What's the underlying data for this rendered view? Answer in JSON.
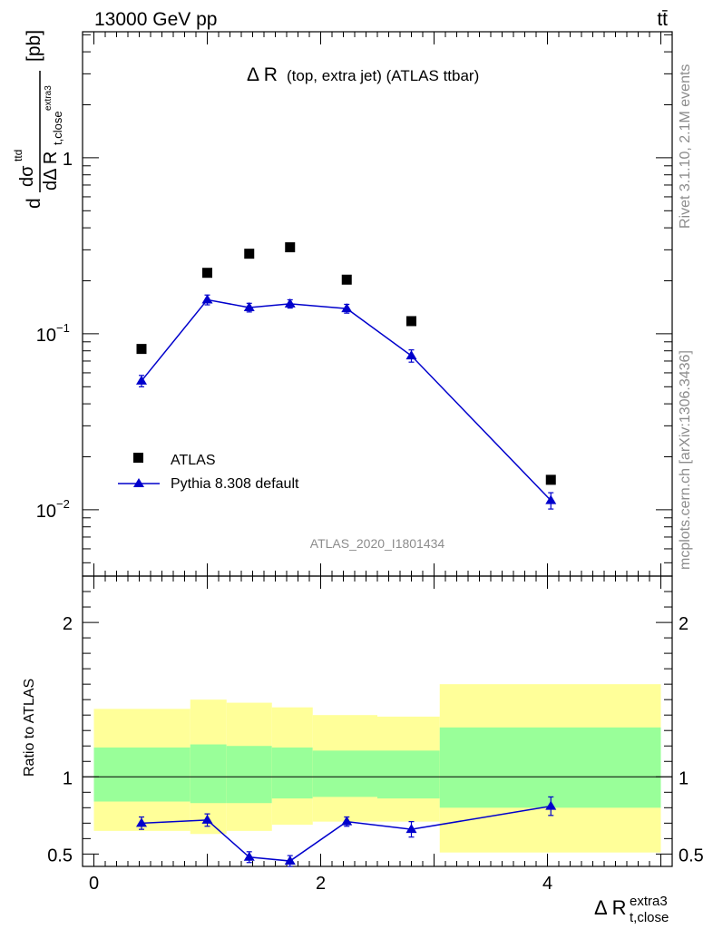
{
  "header": {
    "energy_label": "13000 GeV pp",
    "process_label": "tt̄"
  },
  "plot": {
    "title_main": "Δ R",
    "title_sub": "(top, extra jet) (ATLAS ttbar)",
    "watermark": "ATLAS_2020_I1801434",
    "side_text_top": "Rivet 3.1.10,  2.1M events",
    "side_text_bottom": "mcplots.cern.ch [arXiv:1306.3436]",
    "ylabel_top": "[pb]",
    "ylabel_ratio": "Ratio to ATLAS",
    "xlabel_main": "Δ R",
    "xlabel_sup": "extra3",
    "xlabel_sub": "t,close"
  },
  "chart_data": [
    {
      "type": "scatter",
      "panel": "main",
      "yscale": "log",
      "xlim": [
        -0.1,
        5.1
      ],
      "ylim": [
        0.0042,
        5.2
      ],
      "yticks": [
        {
          "value": 1,
          "label": "1"
        },
        {
          "value": 0.1,
          "label": "10",
          "exp": "−1"
        },
        {
          "value": 0.01,
          "label": "10",
          "exp": "−2"
        }
      ],
      "series": [
        {
          "name": "ATLAS",
          "marker": "square",
          "color": "#000000",
          "x": [
            0.42,
            1.0,
            1.37,
            1.73,
            2.23,
            2.8,
            4.03
          ],
          "y": [
            0.082,
            0.222,
            0.285,
            0.31,
            0.203,
            0.118,
            0.0148
          ]
        },
        {
          "name": "Pythia 8.308 default",
          "marker": "triangle",
          "color": "#0000cc",
          "x": [
            0.42,
            1.0,
            1.37,
            1.73,
            2.23,
            2.8,
            4.03
          ],
          "y": [
            0.054,
            0.156,
            0.141,
            0.148,
            0.139,
            0.075,
            0.0113
          ],
          "err": [
            0.004,
            0.01,
            0.008,
            0.008,
            0.008,
            0.006,
            0.0012
          ]
        }
      ]
    },
    {
      "type": "scatter",
      "panel": "ratio",
      "xlim": [
        -0.1,
        5.1
      ],
      "ylim": [
        0.42,
        2.3
      ],
      "xticks": [
        0,
        2,
        4
      ],
      "yticks": [
        0.5,
        1,
        2
      ],
      "bins": [
        {
          "x": [
            0.0,
            0.85
          ],
          "yellow": [
            0.65,
            1.44
          ],
          "green": [
            0.84,
            1.19
          ]
        },
        {
          "x": [
            0.85,
            1.17
          ],
          "yellow": [
            0.63,
            1.5
          ],
          "green": [
            0.83,
            1.21
          ]
        },
        {
          "x": [
            1.17,
            1.57
          ],
          "yellow": [
            0.65,
            1.48
          ],
          "green": [
            0.83,
            1.2
          ]
        },
        {
          "x": [
            1.57,
            1.93
          ],
          "yellow": [
            0.69,
            1.45
          ],
          "green": [
            0.86,
            1.19
          ]
        },
        {
          "x": [
            1.93,
            2.5
          ],
          "yellow": [
            0.71,
            1.4
          ],
          "green": [
            0.87,
            1.17
          ]
        },
        {
          "x": [
            2.5,
            3.05
          ],
          "yellow": [
            0.71,
            1.39
          ],
          "green": [
            0.86,
            1.17
          ]
        },
        {
          "x": [
            3.05,
            5.0
          ],
          "yellow": [
            0.51,
            1.6
          ],
          "green": [
            0.8,
            1.32
          ]
        }
      ],
      "series": [
        {
          "name": "Pythia 8.308 default",
          "color": "#0000cc",
          "x": [
            0.42,
            1.0,
            1.37,
            1.73,
            2.23,
            2.8,
            4.03
          ],
          "y": [
            0.7,
            0.72,
            0.48,
            0.455,
            0.71,
            0.66,
            0.81
          ],
          "err": [
            0.04,
            0.04,
            0.035,
            0.035,
            0.03,
            0.05,
            0.06
          ]
        }
      ]
    }
  ]
}
